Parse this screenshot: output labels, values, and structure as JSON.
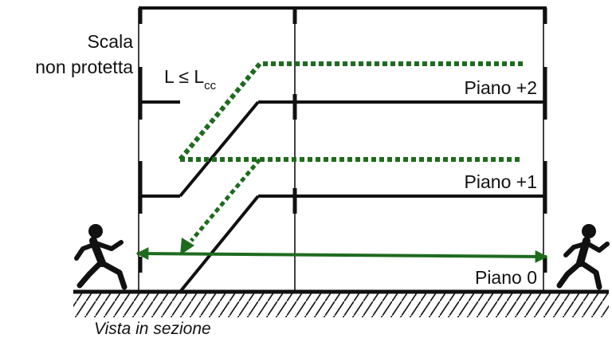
{
  "labels": {
    "stair_title_line1": "Scala",
    "stair_title_line2": "non protetta",
    "length_main": "L ≤ L",
    "length_sub": "cc",
    "floor_top": "Piano +2",
    "floor_mid": "Piano +1",
    "floor_ground": "Piano 0",
    "caption": "Vista in sezione"
  },
  "colors": {
    "structure": "#111111",
    "path": "#1e6b1e",
    "background": "#ffffff"
  },
  "icons": {
    "left_figure": "running-person-icon",
    "right_figure": "running-person-icon"
  }
}
